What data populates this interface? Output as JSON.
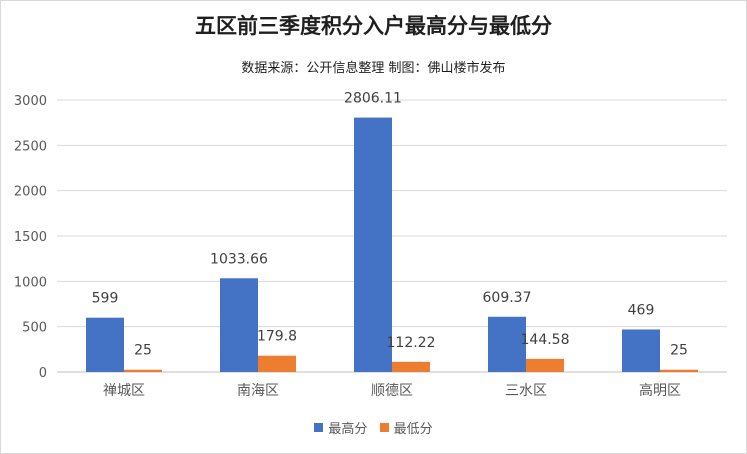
{
  "chart_data": {
    "type": "bar",
    "title": "五区前三季度积分入户最高分与最低分",
    "subtitle": "数据来源：公开信息整理 制图：佛山楼市发布",
    "categories": [
      "禅城区",
      "南海区",
      "顺德区",
      "三水区",
      "高明区"
    ],
    "series": [
      {
        "name": "最高分",
        "color": "#4472C4",
        "values": [
          599,
          1033.66,
          2806.11,
          609.37,
          469
        ],
        "labels": [
          "599",
          "1033.66",
          "2806.11",
          "609.37",
          "469"
        ]
      },
      {
        "name": "最低分",
        "color": "#ED7D31",
        "values": [
          25,
          179.8,
          112.22,
          144.58,
          25
        ],
        "labels": [
          "25",
          "179.8",
          "112.22",
          "144.58",
          "25"
        ]
      }
    ],
    "ylim": [
      0,
      3000
    ],
    "yticks": [
      "0",
      "500",
      "1000",
      "1500",
      "2000",
      "2500",
      "3000"
    ],
    "grid": true,
    "legend": "bottom"
  }
}
